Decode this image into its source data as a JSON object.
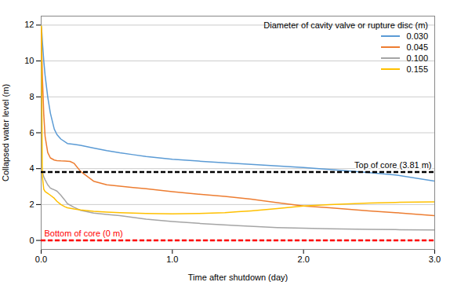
{
  "chart_data": {
    "type": "line",
    "title": "",
    "xlabel": "Time after shutdown (day)",
    "ylabel": "Collapsed water level (m)",
    "xlim": [
      0,
      3
    ],
    "ylim": [
      -0.5,
      12.5
    ],
    "xticks": [
      0,
      1,
      2,
      3
    ],
    "yticks": [
      0,
      2,
      4,
      6,
      8,
      10,
      12
    ],
    "grid": true,
    "legend": "upper right",
    "legend_title": "Diameter of cavity valve or rupture disc (m)",
    "reference_lines": [
      {
        "y": 3.81,
        "label": "Top of core (3.81 m)",
        "color": "black",
        "line_style": "dashed"
      },
      {
        "y": 0.0,
        "label": "Bottom of core (0 m)",
        "color": "red",
        "line_style": "dashed"
      }
    ],
    "series": [
      {
        "name": "0.030",
        "color": "#5B9BD5",
        "x": [
          0.001,
          0.005,
          0.01,
          0.015,
          0.02,
          0.03,
          0.05,
          0.07,
          0.09,
          0.1,
          0.12,
          0.15,
          0.2,
          0.25,
          0.3,
          0.4,
          0.5,
          0.6,
          0.7,
          0.8,
          1.0,
          1.2,
          1.5,
          1.8,
          2.0,
          2.2,
          2.5,
          2.7,
          3.0
        ],
        "values": [
          11.95,
          11.6,
          11.0,
          10.5,
          10.0,
          9.2,
          8.0,
          7.1,
          6.5,
          6.2,
          5.9,
          5.65,
          5.4,
          5.35,
          5.3,
          5.15,
          5.0,
          4.88,
          4.78,
          4.68,
          4.52,
          4.42,
          4.28,
          4.15,
          4.06,
          3.95,
          3.78,
          3.65,
          3.3
        ]
      },
      {
        "name": "0.045",
        "color": "#ED7D31",
        "x": [
          0.001,
          0.005,
          0.01,
          0.02,
          0.03,
          0.05,
          0.07,
          0.1,
          0.12,
          0.15,
          0.18,
          0.2,
          0.22,
          0.25,
          0.3,
          0.4,
          0.5,
          0.6,
          0.7,
          0.8,
          1.0,
          1.2,
          1.4,
          1.6,
          1.8,
          2.0,
          2.2,
          2.5,
          2.7,
          3.0
        ],
        "values": [
          11.85,
          10.5,
          9.0,
          7.0,
          5.8,
          4.9,
          4.6,
          4.48,
          4.45,
          4.43,
          4.42,
          4.41,
          4.4,
          4.3,
          3.85,
          3.3,
          3.1,
          3.02,
          2.95,
          2.88,
          2.72,
          2.58,
          2.45,
          2.3,
          2.1,
          1.92,
          1.82,
          1.65,
          1.55,
          1.38
        ]
      },
      {
        "name": "0.100",
        "color": "#A5A5A5",
        "x": [
          0.001,
          0.005,
          0.01,
          0.02,
          0.03,
          0.05,
          0.07,
          0.08,
          0.1,
          0.12,
          0.15,
          0.18,
          0.2,
          0.25,
          0.3,
          0.4,
          0.5,
          0.6,
          0.7,
          0.8,
          1.0,
          1.2,
          1.5,
          1.8,
          2.0,
          2.2,
          2.5,
          2.7,
          3.0
        ],
        "values": [
          3.85,
          3.82,
          3.78,
          3.55,
          3.38,
          3.1,
          2.92,
          2.88,
          2.82,
          2.75,
          2.52,
          2.25,
          2.05,
          1.85,
          1.68,
          1.52,
          1.45,
          1.38,
          1.28,
          1.18,
          1.05,
          0.95,
          0.82,
          0.72,
          0.68,
          0.65,
          0.62,
          0.6,
          0.58
        ]
      },
      {
        "name": "0.155",
        "color": "#FFC000",
        "x": [
          0.001,
          0.003,
          0.005,
          0.008,
          0.01,
          0.02,
          0.03,
          0.05,
          0.07,
          0.1,
          0.12,
          0.15,
          0.18,
          0.2,
          0.25,
          0.3,
          0.4,
          0.5,
          0.6,
          0.7,
          0.8,
          1.0,
          1.2,
          1.4,
          1.5,
          1.6,
          1.8,
          2.0,
          2.2,
          2.5,
          2.7,
          3.0
        ],
        "values": [
          11.95,
          11.5,
          8.0,
          4.2,
          3.5,
          2.85,
          2.72,
          2.62,
          2.52,
          2.35,
          2.18,
          2.0,
          1.88,
          1.82,
          1.75,
          1.7,
          1.62,
          1.58,
          1.55,
          1.52,
          1.5,
          1.48,
          1.5,
          1.55,
          1.6,
          1.65,
          1.78,
          1.92,
          2.0,
          2.08,
          2.12,
          2.15
        ]
      }
    ]
  }
}
